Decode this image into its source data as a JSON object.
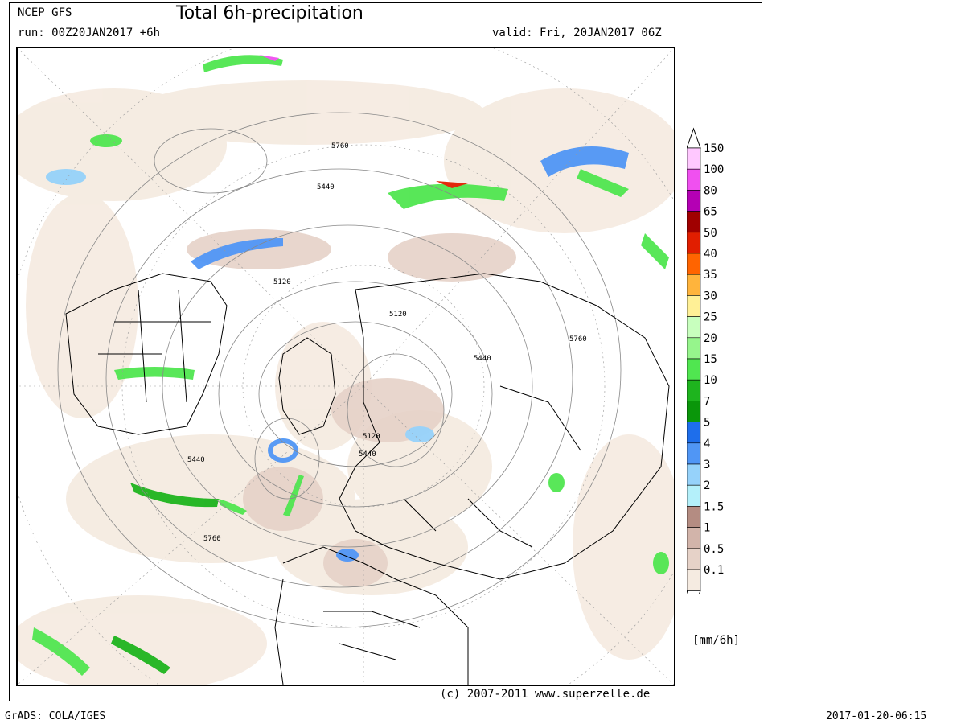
{
  "header": {
    "model": "NCEP GFS",
    "title": "Total 6h-precipitation",
    "run": "run: 00Z20JAN2017 +6h",
    "valid": "valid: Fri, 20JAN2017 06Z"
  },
  "footer": {
    "copyright": "(c) 2007-2011 www.superzelle.de",
    "software": "GrADS: COLA/IGES",
    "timestamp": "2017-01-20-06:15"
  },
  "legend": {
    "units": "[mm/6h]",
    "levels": [
      {
        "value": "150",
        "color": "#ffc8ff"
      },
      {
        "value": "100",
        "color": "#f050f0"
      },
      {
        "value": "80",
        "color": "#b400b4"
      },
      {
        "value": "65",
        "color": "#a00000"
      },
      {
        "value": "50",
        "color": "#e11e00"
      },
      {
        "value": "40",
        "color": "#ff6400"
      },
      {
        "value": "35",
        "color": "#ffb43c"
      },
      {
        "value": "30",
        "color": "#fff096"
      },
      {
        "value": "25",
        "color": "#c8ffbe"
      },
      {
        "value": "20",
        "color": "#96f58c"
      },
      {
        "value": "15",
        "color": "#50e650"
      },
      {
        "value": "10",
        "color": "#1eb41e"
      },
      {
        "value": "7",
        "color": "#0a960a"
      },
      {
        "value": "5",
        "color": "#1e6eeb"
      },
      {
        "value": "4",
        "color": "#5096f5"
      },
      {
        "value": "3",
        "color": "#96d2fa"
      },
      {
        "value": "2",
        "color": "#b4f0fa"
      },
      {
        "value": "1.5",
        "color": "#b48c82"
      },
      {
        "value": "1",
        "color": "#d2b4aa"
      },
      {
        "value": "0.5",
        "color": "#e6d2c8"
      },
      {
        "value": "0.1",
        "color": "#f5ebe1"
      }
    ]
  },
  "map": {
    "contour_labels": [
      "5760",
      "5440",
      "5120",
      "5120",
      "5440",
      "5760",
      "5120",
      "5440",
      "5440",
      "5760"
    ]
  }
}
